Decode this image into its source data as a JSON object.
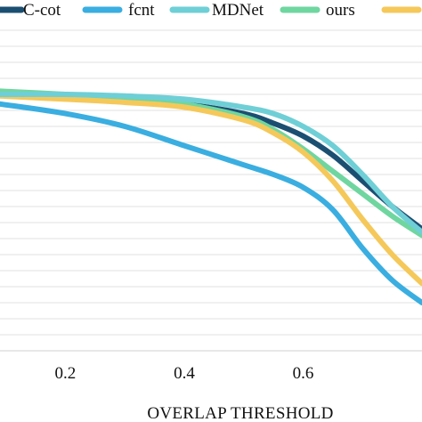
{
  "chart_data": {
    "type": "line",
    "title": "",
    "xlabel": "OVERLAP THRESHOLD",
    "ylabel": "",
    "xlim": [
      0.09,
      0.8
    ],
    "ylim": [
      0,
      1
    ],
    "x_ticks": [
      0.2,
      0.4,
      0.6
    ],
    "x_tick_labels": [
      "0.2",
      "0.4",
      "0.6"
    ],
    "grid": true,
    "legend_position": "top",
    "x": [
      0.09,
      0.2,
      0.3,
      0.4,
      0.5,
      0.55,
      0.6,
      0.65,
      0.7,
      0.75,
      0.8
    ],
    "series": [
      {
        "name": "C-cot",
        "color": "#1b4f72",
        "values": [
          0.8,
          0.79,
          0.785,
          0.77,
          0.74,
          0.71,
          0.67,
          0.61,
          0.53,
          0.45,
          0.38
        ]
      },
      {
        "name": "fcnt",
        "color": "#3aaee0",
        "values": [
          0.77,
          0.74,
          0.7,
          0.64,
          0.58,
          0.55,
          0.51,
          0.44,
          0.32,
          0.22,
          0.15
        ]
      },
      {
        "name": "MDNet",
        "color": "#6fcfd6",
        "values": [
          0.8,
          0.8,
          0.795,
          0.785,
          0.76,
          0.74,
          0.7,
          0.64,
          0.55,
          0.45,
          0.37
        ]
      },
      {
        "name": "ours",
        "color": "#6fd6a0",
        "values": [
          0.81,
          0.8,
          0.79,
          0.77,
          0.73,
          0.69,
          0.63,
          0.56,
          0.49,
          0.42,
          0.36
        ]
      },
      {
        "name": "",
        "color": "#f5c85a",
        "values": [
          0.795,
          0.785,
          0.775,
          0.76,
          0.72,
          0.68,
          0.62,
          0.53,
          0.41,
          0.3,
          0.21
        ]
      }
    ]
  }
}
